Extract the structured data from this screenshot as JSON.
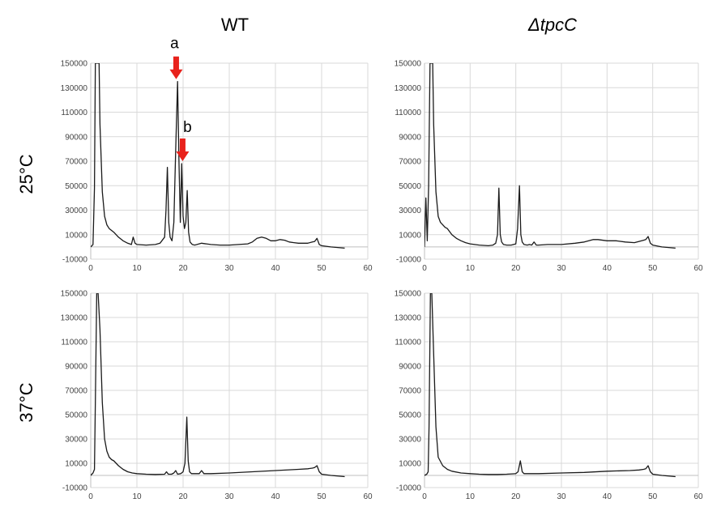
{
  "column_titles": [
    "WT",
    "ΔtpcC"
  ],
  "row_labels": [
    "25°C",
    "37°C"
  ],
  "colors": {
    "trace": "#1a1a1a",
    "grid": "#d9d9d9",
    "arrow": "#e8221c"
  },
  "chart_data": [
    {
      "type": "line",
      "title": "",
      "xlim": [
        0,
        60
      ],
      "ylim": [
        -10000,
        150000
      ],
      "xticks": [
        0,
        10,
        20,
        30,
        40,
        50,
        60
      ],
      "yticks": [
        -10000,
        10000,
        30000,
        50000,
        70000,
        90000,
        110000,
        130000,
        150000
      ],
      "grid": true,
      "series": [
        {
          "x": [
            0,
            0.5,
            0.8,
            1.0,
            1.3,
            1.5,
            1.8,
            2.0,
            2.5,
            3,
            3.5,
            4,
            5,
            6,
            7,
            8,
            8.8,
            9.2,
            9.6,
            10,
            12,
            14,
            15,
            16,
            16.3,
            16.6,
            16.9,
            17.2,
            17.6,
            18,
            18.4,
            18.8,
            19.1,
            19.4,
            19.7,
            20,
            20.3,
            20.6,
            20.9,
            21.2,
            21.5,
            22,
            22.5,
            23,
            24,
            26,
            28,
            30,
            32,
            34,
            35,
            36,
            37,
            38,
            39,
            40,
            41,
            42,
            43,
            44,
            45,
            46,
            47,
            48,
            48.5,
            49,
            49.5,
            50,
            52,
            55
          ],
          "values": [
            0,
            2000,
            48000,
            150000,
            150000,
            150000,
            150000,
            100000,
            45000,
            25000,
            18000,
            15000,
            12000,
            8000,
            5000,
            3000,
            2000,
            8000,
            3000,
            2000,
            1500,
            2000,
            3000,
            8000,
            30000,
            65000,
            20000,
            8000,
            5000,
            20000,
            80000,
            135000,
            70000,
            20000,
            68000,
            25000,
            15000,
            20000,
            46000,
            12000,
            4000,
            2000,
            1500,
            2000,
            3000,
            2000,
            1500,
            1500,
            2000,
            2500,
            4000,
            7000,
            8000,
            7000,
            5000,
            5000,
            6000,
            5500,
            4000,
            3500,
            3000,
            3000,
            3000,
            4000,
            4500,
            7000,
            2000,
            1000,
            0,
            -1000
          ]
        }
      ],
      "annotations": [
        {
          "text": "a",
          "x": 18.5,
          "y": 135000
        },
        {
          "text": "b",
          "x": 19.9,
          "y": 68000
        }
      ]
    },
    {
      "type": "line",
      "title": "",
      "xlim": [
        0,
        60
      ],
      "ylim": [
        -10000,
        150000
      ],
      "xticks": [
        0,
        10,
        20,
        30,
        40,
        50,
        60
      ],
      "yticks": [
        -10000,
        10000,
        30000,
        50000,
        70000,
        90000,
        110000,
        130000,
        150000
      ],
      "grid": true,
      "series": [
        {
          "x": [
            0,
            0.3,
            0.6,
            0.9,
            1.2,
            1.5,
            1.8,
            2.0,
            2.5,
            3,
            3.5,
            4,
            4.5,
            5,
            6,
            7,
            8,
            9,
            10,
            12,
            14,
            15,
            15.6,
            16.0,
            16.3,
            16.6,
            16.9,
            17.3,
            18,
            19,
            20,
            20.4,
            20.8,
            21.1,
            21.4,
            21.8,
            22.5,
            23,
            23.5,
            24,
            24.5,
            25,
            27,
            30,
            33,
            35,
            36,
            37,
            38,
            40,
            42,
            44,
            46,
            47,
            48,
            48.5,
            49,
            49.5,
            50,
            52,
            55
          ],
          "values": [
            0,
            40000,
            5000,
            50000,
            150000,
            150000,
            150000,
            100000,
            45000,
            25000,
            20000,
            18000,
            16000,
            15000,
            10000,
            7000,
            5000,
            3500,
            2500,
            1500,
            1000,
            1500,
            3000,
            10000,
            48000,
            10000,
            4000,
            2000,
            1500,
            1500,
            2500,
            15000,
            50000,
            10000,
            4000,
            2000,
            1500,
            2000,
            1500,
            4000,
            1500,
            1500,
            2000,
            2000,
            3000,
            4000,
            5000,
            6000,
            6000,
            5000,
            5000,
            4000,
            3500,
            4500,
            5500,
            6000,
            8500,
            3000,
            1500,
            0,
            -1000
          ]
        }
      ],
      "annotations": []
    },
    {
      "type": "line",
      "title": "",
      "xlim": [
        0,
        60
      ],
      "ylim": [
        -10000,
        150000
      ],
      "xticks": [
        0,
        10,
        20,
        30,
        40,
        50,
        60
      ],
      "yticks": [
        -10000,
        10000,
        30000,
        50000,
        70000,
        90000,
        110000,
        130000,
        150000
      ],
      "grid": true,
      "series": [
        {
          "x": [
            0,
            0.5,
            0.8,
            1.0,
            1.3,
            1.6,
            2.0,
            2.5,
            3,
            3.5,
            4,
            4.5,
            5,
            6,
            7,
            8,
            9,
            10,
            12,
            14,
            16,
            16.4,
            16.8,
            17.5,
            18,
            18.4,
            18.8,
            19.5,
            20,
            20.4,
            20.8,
            21.1,
            21.4,
            21.8,
            22.5,
            23.5,
            24,
            24.5,
            26,
            30,
            35,
            40,
            45,
            47,
            48,
            48.5,
            49,
            49.5,
            50,
            52,
            55
          ],
          "values": [
            0,
            2000,
            5000,
            60000,
            150000,
            150000,
            120000,
            60000,
            30000,
            20000,
            15000,
            13000,
            12000,
            8000,
            5000,
            3000,
            2000,
            1500,
            1000,
            800,
            1000,
            3000,
            1000,
            1000,
            2000,
            4000,
            1000,
            1500,
            3000,
            10000,
            48000,
            12000,
            3000,
            1500,
            1500,
            1500,
            4000,
            1500,
            1500,
            2000,
            3000,
            4000,
            5000,
            5500,
            6000,
            6500,
            8000,
            3000,
            1000,
            0,
            -1000
          ]
        }
      ],
      "annotations": []
    },
    {
      "type": "line",
      "title": "",
      "xlim": [
        0,
        60
      ],
      "ylim": [
        -10000,
        150000
      ],
      "xticks": [
        0,
        10,
        20,
        30,
        40,
        50,
        60
      ],
      "yticks": [
        -10000,
        10000,
        30000,
        50000,
        70000,
        90000,
        110000,
        130000,
        150000
      ],
      "grid": true,
      "series": [
        {
          "x": [
            0,
            0.5,
            0.8,
            1.0,
            1.3,
            1.6,
            2.0,
            2.5,
            3,
            4,
            5,
            6,
            8,
            10,
            12,
            14,
            16,
            18,
            20,
            20.5,
            21,
            21.4,
            21.8,
            22.5,
            25,
            30,
            35,
            40,
            45,
            47,
            48,
            48.5,
            49,
            49.5,
            50,
            52,
            55
          ],
          "values": [
            0,
            1000,
            3000,
            40000,
            150000,
            150000,
            100000,
            40000,
            15000,
            8000,
            5000,
            3500,
            2000,
            1500,
            1000,
            800,
            800,
            1000,
            1500,
            3000,
            12000,
            3000,
            1500,
            1500,
            1500,
            2000,
            2500,
            3500,
            4000,
            4500,
            5000,
            5500,
            8000,
            3000,
            1000,
            0,
            -1000
          ]
        }
      ],
      "annotations": []
    }
  ]
}
